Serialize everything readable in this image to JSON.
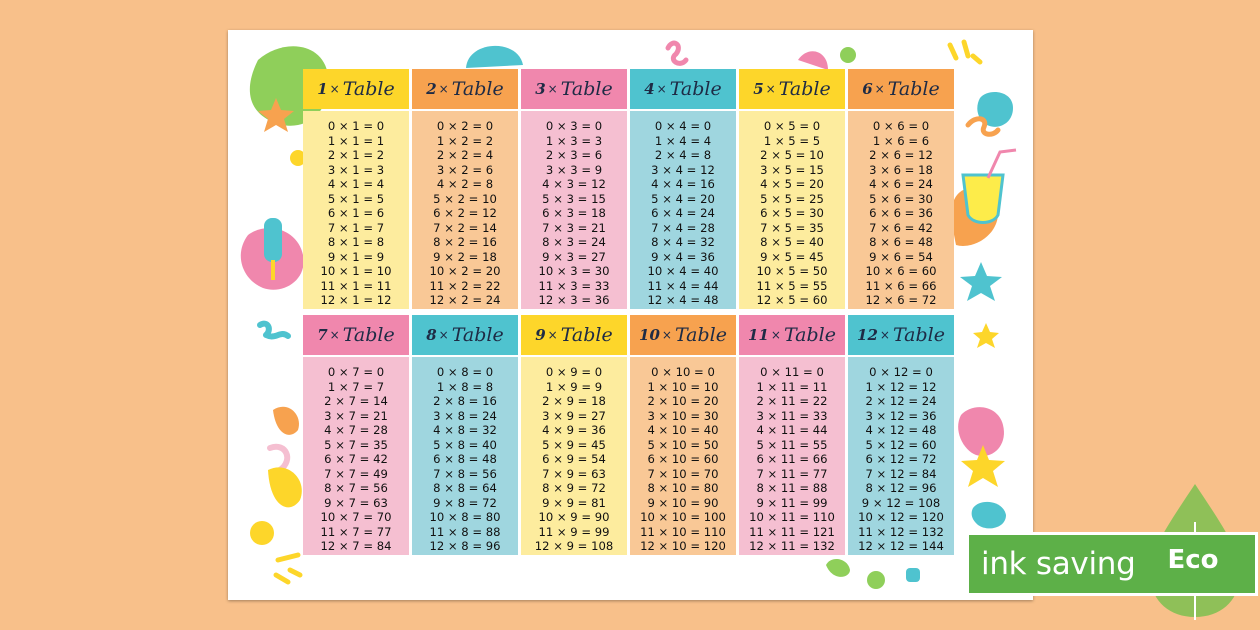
{
  "tables": [
    {
      "n": "1",
      "label": "Table",
      "color": "yellow",
      "rows": [
        "0 × 1 = 0",
        "1 × 1 = 1",
        "2 × 1 = 2",
        "3 × 1 = 3",
        "4 × 1 = 4",
        "5 × 1 = 5",
        "6 × 1 = 6",
        "7 × 1 = 7",
        "8 × 1 = 8",
        "9 × 1 = 9",
        "10 × 1 = 10",
        "11 × 1 = 11",
        "12 × 1 = 12"
      ]
    },
    {
      "n": "2",
      "label": "Table",
      "color": "orange",
      "rows": [
        "0 × 2 = 0",
        "1 × 2 = 2",
        "2 × 2 = 4",
        "3 × 2 = 6",
        "4 × 2 = 8",
        "5 × 2 = 10",
        "6 × 2 = 12",
        "7 × 2 = 14",
        "8 × 2 = 16",
        "9 × 2 = 18",
        "10 × 2 = 20",
        "11 × 2 = 22",
        "12 × 2 = 24"
      ]
    },
    {
      "n": "3",
      "label": "Table",
      "color": "pink",
      "rows": [
        "0 × 3 = 0",
        "1 × 3 = 3",
        "2 × 3 = 6",
        "3 × 3 = 9",
        "4 × 3 = 12",
        "5 × 3 = 15",
        "6 × 3 = 18",
        "7 × 3 = 21",
        "8 × 3 = 24",
        "9 × 3 = 27",
        "10 × 3 = 30",
        "11 × 3 = 33",
        "12 × 3 = 36"
      ]
    },
    {
      "n": "4",
      "label": "Table",
      "color": "teal",
      "rows": [
        "0 × 4 = 0",
        "1 × 4 = 4",
        "2 × 4 = 8",
        "3 × 4 = 12",
        "4 × 4 = 16",
        "5 × 4 = 20",
        "6 × 4 = 24",
        "7 × 4 = 28",
        "8 × 4 = 32",
        "9 × 4 = 36",
        "10 × 4 = 40",
        "11 × 4 = 44",
        "12 × 4 = 48"
      ]
    },
    {
      "n": "5",
      "label": "Table",
      "color": "yellow",
      "rows": [
        "0 × 5 = 0",
        "1 × 5 = 5",
        "2 × 5 = 10",
        "3 × 5 = 15",
        "4 × 5 = 20",
        "5 × 5 = 25",
        "6 × 5 = 30",
        "7 × 5 = 35",
        "8 × 5 = 40",
        "9 × 5 = 45",
        "10 × 5 = 50",
        "11 × 5 = 55",
        "12 × 5 = 60"
      ]
    },
    {
      "n": "6",
      "label": "Table",
      "color": "orange",
      "rows": [
        "0 × 6 = 0",
        "1 × 6 = 6",
        "2 × 6 = 12",
        "3 × 6 = 18",
        "4 × 6 = 24",
        "5 × 6 = 30",
        "6 × 6 = 36",
        "7 × 6 = 42",
        "8 × 6 = 48",
        "9 × 6 = 54",
        "10 × 6 = 60",
        "11 × 6 = 66",
        "12 × 6 = 72"
      ]
    },
    {
      "n": "7",
      "label": "Table",
      "color": "pink",
      "rows": [
        "0 × 7 = 0",
        "1 × 7 = 7",
        "2 × 7 = 14",
        "3 × 7 = 21",
        "4 × 7 = 28",
        "5 × 7 = 35",
        "6 × 7 = 42",
        "7 × 7 = 49",
        "8 × 7 = 56",
        "9 × 7 = 63",
        "10 × 7 = 70",
        "11 × 7 = 77",
        "12 × 7 = 84"
      ]
    },
    {
      "n": "8",
      "label": "Table",
      "color": "teal",
      "rows": [
        "0 × 8 = 0",
        "1 × 8 = 8",
        "2 × 8 = 16",
        "3 × 8 = 24",
        "4 × 8 = 32",
        "5 × 8 = 40",
        "6 × 8 = 48",
        "7 × 8 = 56",
        "8 × 8 = 64",
        "9 × 8 = 72",
        "10 × 8 = 80",
        "11 × 8 = 88",
        "12 × 8 = 96"
      ]
    },
    {
      "n": "9",
      "label": "Table",
      "color": "yellow",
      "rows": [
        "0 × 9 = 0",
        "1 × 9 = 9",
        "2 × 9 = 18",
        "3 × 9 = 27",
        "4 × 9 = 36",
        "5 × 9 = 45",
        "6 × 9 = 54",
        "7 × 9 = 63",
        "8 × 9 = 72",
        "9 × 9 = 81",
        "10 × 9 = 90",
        "11 × 9 = 99",
        "12 × 9 = 108"
      ]
    },
    {
      "n": "10",
      "label": "Table",
      "color": "orange",
      "rows": [
        "0 × 10 = 0",
        "1 × 10 = 10",
        "2 × 10 = 20",
        "3 × 10 = 30",
        "4 × 10 = 40",
        "5 × 10 = 50",
        "6 × 10 = 60",
        "7 × 10 = 70",
        "8 × 10 = 80",
        "9 × 10 = 90",
        "10 × 10 = 100",
        "11 × 10 = 110",
        "12 × 10 = 120"
      ]
    },
    {
      "n": "11",
      "label": "Table",
      "color": "pink",
      "rows": [
        "0 × 11 = 0",
        "1 × 11 = 11",
        "2 × 11 = 22",
        "3 × 11 = 33",
        "4 × 11 = 44",
        "5 × 11 = 55",
        "6 × 11 = 66",
        "7 × 11 = 77",
        "8 × 11 = 88",
        "9 × 11 = 99",
        "10 × 11 = 110",
        "11 × 11 = 121",
        "12 × 11 = 132"
      ]
    },
    {
      "n": "12",
      "label": "Table",
      "color": "teal",
      "rows": [
        "0 × 12 = 0",
        "1 × 12 = 12",
        "2 × 12 = 24",
        "3 × 12 = 36",
        "4 × 12 = 48",
        "5 × 12 = 60",
        "6 × 12 = 72",
        "7 × 12 = 84",
        "8 × 12 = 96",
        "9 × 12 = 108",
        "10 × 12 = 120",
        "11 × 12 = 132",
        "12 × 12 = 144"
      ]
    }
  ],
  "eco_badge": {
    "text": "ink saving",
    "leaf_text": "Eco",
    "color": "#5db048"
  },
  "colors": {
    "background": "#f8c08a",
    "yellow": "#fdd62a",
    "orange": "#f7a24f",
    "pink": "#f087ad",
    "teal": "#4fc3cf"
  }
}
